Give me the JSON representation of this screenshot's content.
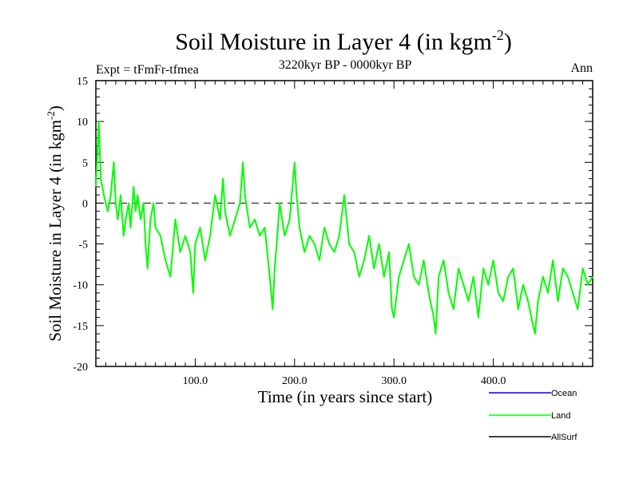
{
  "chart_data": {
    "type": "line",
    "title": "Soil Moisture in Layer 4 (in kgm",
    "title_superscript": "-2",
    "title_suffix": ")",
    "subtitle": "3220kyr BP - 0000kyr BP",
    "experiment_label": "Expt = tFmFr-tfmea",
    "season_label": "Ann",
    "xlabel": "Time (in years since start)",
    "ylabel": "Soil Moisture in Layer 4 (in kgm",
    "ylabel_superscript": "-2",
    "ylabel_suffix": ")",
    "xlim": [
      0,
      500
    ],
    "ylim": [
      -20,
      15
    ],
    "xticks": [
      100,
      200,
      300,
      400
    ],
    "xtick_labels": [
      "100.0",
      "200.0",
      "300.0",
      "400.0"
    ],
    "yticks": [
      -20,
      -15,
      -10,
      -5,
      0,
      5,
      10,
      15
    ],
    "ytick_labels": [
      "-20",
      "-15",
      "-10",
      "-5",
      "0",
      "5",
      "10",
      "15"
    ],
    "zero_line": true,
    "grid": false,
    "legend_position": "bottom-right",
    "series": [
      {
        "name": "Ocean",
        "color": "#0000ff",
        "x": [],
        "values": []
      },
      {
        "name": "Land",
        "color": "#00ff00",
        "x": [
          0,
          3,
          5,
          8,
          12,
          15,
          18,
          20,
          22,
          25,
          28,
          30,
          33,
          35,
          38,
          40,
          42,
          45,
          48,
          50,
          52,
          55,
          58,
          60,
          65,
          70,
          75,
          80,
          85,
          90,
          95,
          98,
          100,
          105,
          110,
          115,
          120,
          125,
          128,
          130,
          135,
          140,
          145,
          148,
          150,
          155,
          160,
          165,
          170,
          175,
          178,
          180,
          182,
          185,
          190,
          195,
          200,
          202,
          205,
          210,
          215,
          220,
          225,
          230,
          235,
          240,
          245,
          250,
          255,
          260,
          265,
          270,
          275,
          280,
          285,
          290,
          295,
          298,
          300,
          305,
          310,
          315,
          320,
          325,
          330,
          335,
          340,
          342,
          345,
          350,
          355,
          360,
          365,
          370,
          375,
          380,
          385,
          390,
          395,
          400,
          405,
          410,
          415,
          420,
          425,
          430,
          435,
          440,
          442,
          445,
          450,
          455,
          460,
          465,
          470,
          475,
          480,
          485,
          490,
          495,
          500
        ],
        "values": [
          2,
          10,
          3,
          1,
          -1,
          1,
          5,
          0,
          -2,
          1,
          -4,
          -2,
          0,
          -3,
          2,
          -1,
          1,
          -2,
          0,
          -5,
          -8,
          -2,
          0,
          -3,
          -4,
          -7,
          -9,
          -2,
          -6,
          -4,
          -6,
          -11,
          -5,
          -3,
          -7,
          -4,
          1,
          -2,
          3,
          -1,
          -4,
          -2,
          0,
          5,
          1,
          -3,
          -2,
          -4,
          -3,
          -9,
          -13,
          -8,
          -5,
          0,
          -4,
          -2,
          5,
          1,
          -3,
          -6,
          -4,
          -5,
          -7,
          -3,
          -5,
          -6,
          -4,
          1,
          -5,
          -6,
          -9,
          -7,
          -4,
          -8,
          -5,
          -9,
          -6,
          -13,
          -14,
          -9,
          -7,
          -5,
          -9,
          -10,
          -7,
          -11,
          -14,
          -16,
          -9,
          -7,
          -11,
          -13,
          -8,
          -10,
          -12,
          -9,
          -14,
          -8,
          -10,
          -7,
          -11,
          -12,
          -9,
          -8,
          -13,
          -10,
          -12,
          -15,
          -16,
          -12,
          -9,
          -11,
          -7,
          -12,
          -8,
          -9,
          -11,
          -13,
          -8,
          -10,
          -9
        ]
      },
      {
        "name": "AllSurf",
        "color": "#000000",
        "x": [],
        "values": []
      }
    ]
  }
}
